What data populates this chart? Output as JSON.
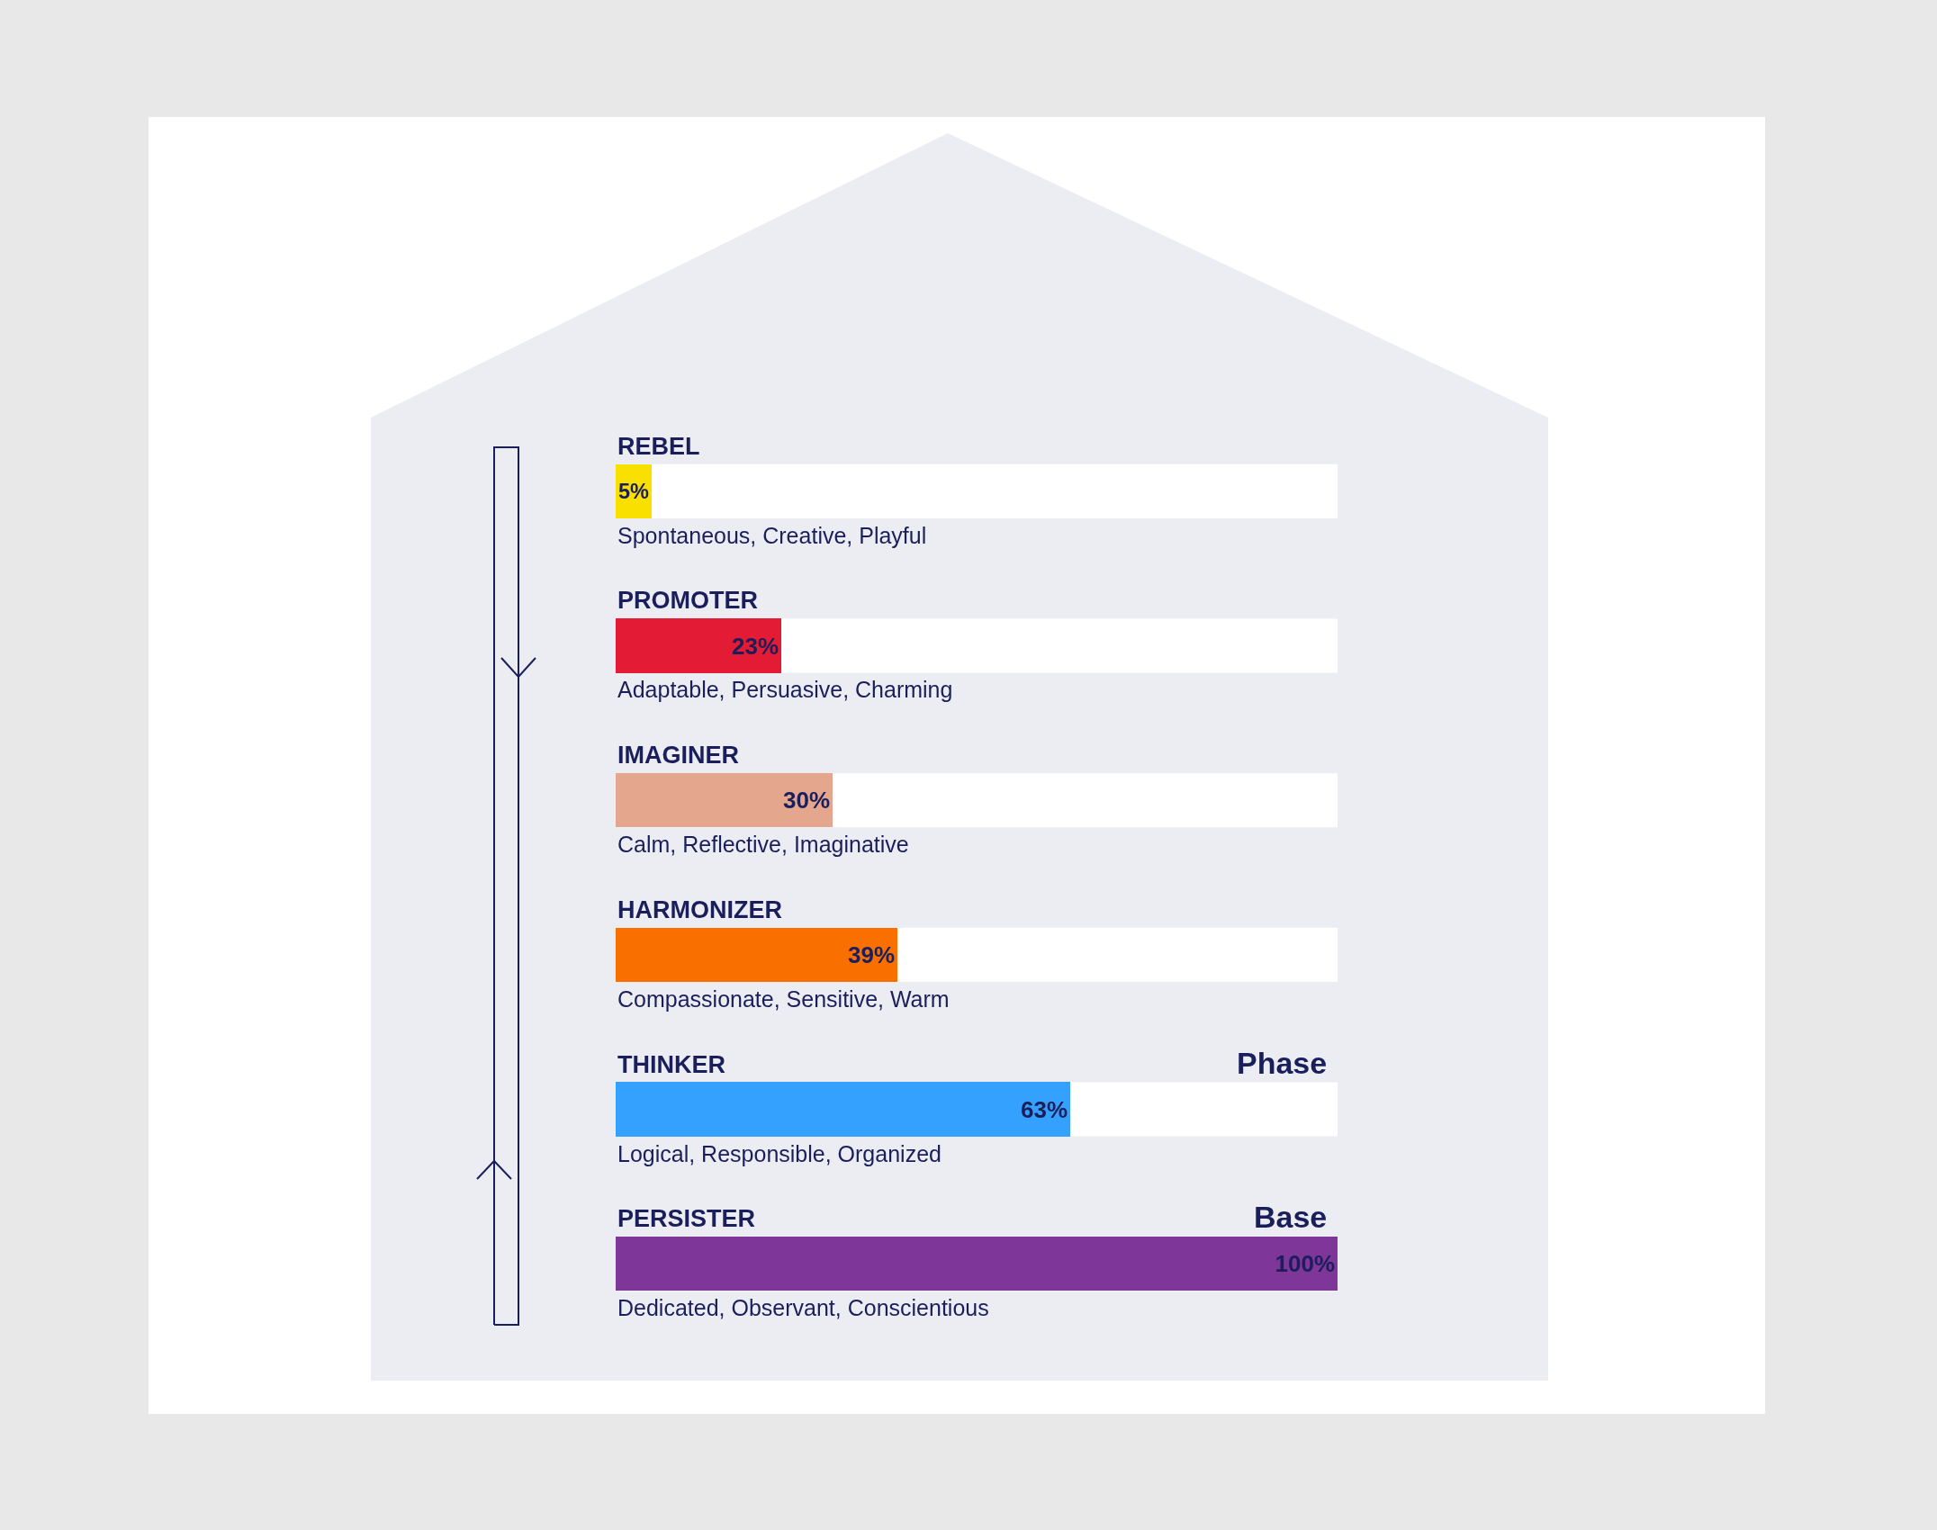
{
  "chart_data": {
    "type": "bar",
    "orientation": "horizontal",
    "categories": [
      "REBEL",
      "PROMOTER",
      "IMAGINER",
      "HARMONIZER",
      "THINKER",
      "PERSISTER"
    ],
    "values": [
      5,
      23,
      30,
      39,
      63,
      100
    ],
    "colors": [
      "#f9e000",
      "#e31b35",
      "#e4a78e",
      "#fa7000",
      "#33a1fd",
      "#7f3699"
    ],
    "value_labels": [
      "5%",
      "23%",
      "30%",
      "39%",
      "63%",
      "100%"
    ],
    "xlim": [
      0,
      100
    ],
    "tick_labels": false,
    "grid": false,
    "annotations": [
      "Spontaneous, Creative, Playful",
      "Adaptable, Persuasive, Charming",
      "Calm, Reflective, Imaginative",
      "Compassionate, Sensitive, Warm",
      "Logical, Responsible, Organized",
      "Dedicated, Observant, Conscientious",
      "Phase",
      "Base"
    ]
  }
}
